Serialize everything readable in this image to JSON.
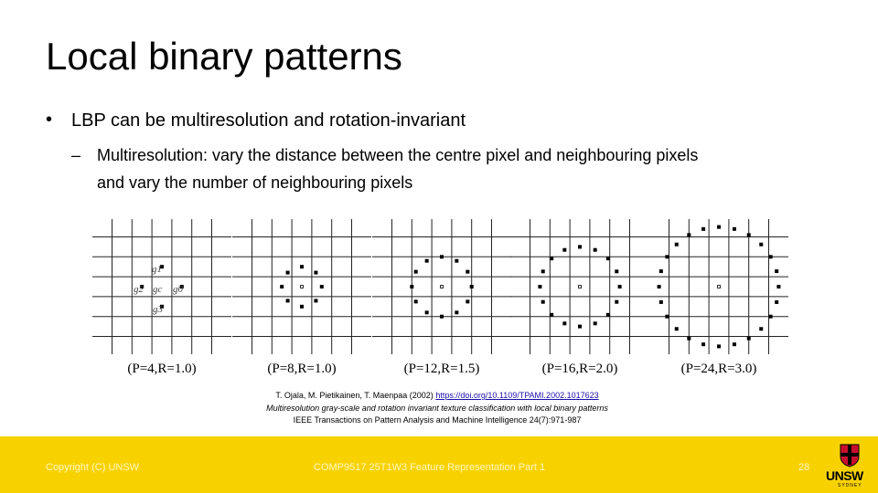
{
  "slide": {
    "title": "Local binary patterns",
    "bullets": [
      {
        "text": "LBP can be multiresolution and rotation-invariant",
        "sub": [
          "Multiresolution: vary the distance between the centre pixel and neighbouring pixels",
          "and vary the number of neighbouring pixels"
        ]
      }
    ],
    "figure": {
      "captions": [
        "(P=4,R=1.0)",
        "(P=8,R=1.0)",
        "(P=12,R=1.5)",
        "(P=16,R=2.0)",
        "(P=24,R=3.0)"
      ],
      "pixel_labels": [
        "g1",
        "g2",
        "gc",
        "g0",
        "g3"
      ]
    },
    "citation": {
      "authors": "T. Ojala, M. Pietikainen, T. Maenpaa (2002)",
      "link": "https://doi.org/10.1109/TPAMI.2002.1017623",
      "paper": "Multiresolution gray-scale and rotation invariant texture classification with local binary patterns",
      "journal": "IEEE Transactions on Pattern Analysis and Machine Intelligence 24(7):971-987"
    },
    "footer": {
      "copyright": "Copyright (C) UNSW",
      "course": "COMP9517 25T1W3 Feature Representation Part 1",
      "page": "28",
      "logo": "UNSW",
      "logo_sub": "SYDNEY"
    }
  }
}
